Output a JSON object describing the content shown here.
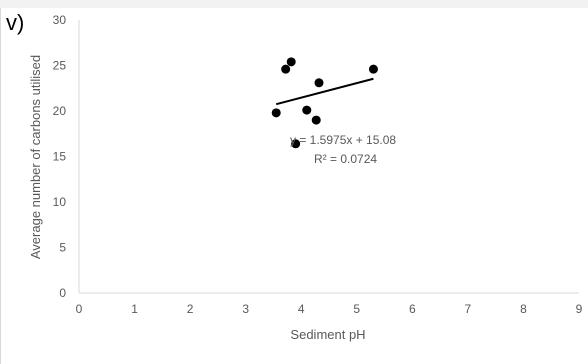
{
  "panel_label": "v)",
  "chart_data": {
    "type": "scatter",
    "xlabel": "Sediment pH",
    "ylabel": "Average number of carbons utilised",
    "xlim": [
      0,
      9
    ],
    "ylim": [
      0,
      30
    ],
    "xticks": [
      0,
      1,
      2,
      3,
      4,
      5,
      6,
      7,
      8,
      9
    ],
    "yticks": [
      0,
      5,
      10,
      15,
      20,
      25,
      30
    ],
    "grid": false,
    "points": [
      {
        "x": 3.55,
        "y": 19.8
      },
      {
        "x": 3.72,
        "y": 24.6
      },
      {
        "x": 3.82,
        "y": 25.4
      },
      {
        "x": 3.9,
        "y": 16.4
      },
      {
        "x": 4.1,
        "y": 20.1
      },
      {
        "x": 4.27,
        "y": 19.0
      },
      {
        "x": 4.32,
        "y": 23.1
      },
      {
        "x": 5.3,
        "y": 24.6
      }
    ],
    "trendline": {
      "type": "linear",
      "slope": 1.5975,
      "intercept": 15.08,
      "x_range": [
        3.55,
        5.3
      ]
    },
    "equation_label": "y = 1.5975x + 15.08",
    "r2_label": "R² = 0.0724",
    "colors": {
      "points": "#000000",
      "trendline": "#000000",
      "axis": "#d9d9d9",
      "text": "#595959"
    }
  }
}
